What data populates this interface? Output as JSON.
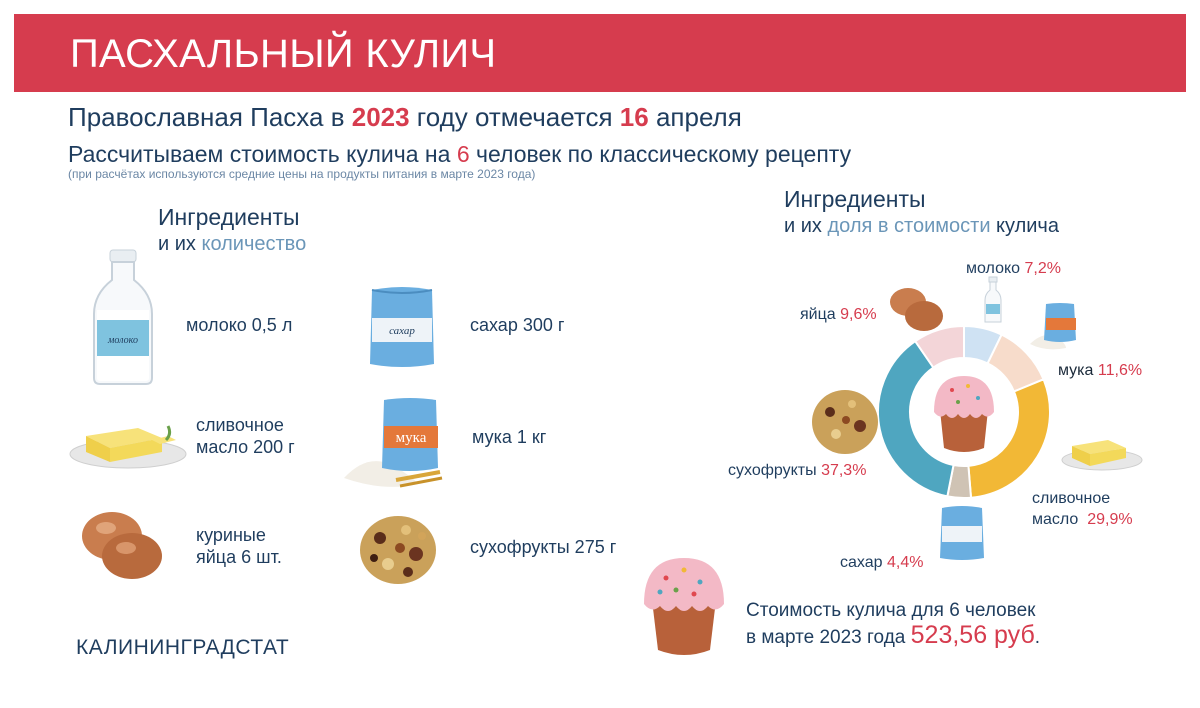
{
  "header": {
    "title": "ПАСХАЛЬНЫЙ КУЛИЧ"
  },
  "subtitle": {
    "line1_a": "Православная Пасха в ",
    "line1_year": "2023",
    "line1_b": " году отмечается ",
    "line1_day": "16",
    "line1_c": " апреля",
    "line2_a": "Рассчитываем стоимость кулича на ",
    "line2_num": "6",
    "line2_b": " человек по классическому рецепту",
    "note": "(при расчётах используются средние цены на продукты питания в марте 2023 года)"
  },
  "ingredients_quantity": {
    "heading": "Ингредиенты",
    "sub_a": "и их ",
    "sub_b": "количество",
    "items": [
      {
        "icon": "milk-bottle-icon",
        "label": "молоко 0,5 л",
        "bottle_label": "молоко"
      },
      {
        "icon": "butter-icon",
        "label1": "сливочное",
        "label2": "масло 200 г"
      },
      {
        "icon": "eggs-icon",
        "label1": "куриные",
        "label2": "яйца  6 шт."
      },
      {
        "icon": "sugar-bag-icon",
        "label": "сахар 300 г",
        "bag_label": "сахар"
      },
      {
        "icon": "flour-bag-icon",
        "label": "мука 1 кг",
        "bag_label": "мука"
      },
      {
        "icon": "dried-fruits-icon",
        "label": "сухофрукты 275 г"
      }
    ]
  },
  "ingredients_share": {
    "heading": "Ингредиенты",
    "sub_a": "и их ",
    "sub_b": "доля в стоимости",
    "sub_c": " кулича"
  },
  "chart_data": {
    "type": "pie",
    "style": "donut",
    "series": [
      {
        "label": "молоко",
        "value": 7.2,
        "pct_text": "7,2%",
        "color": "#cfe2f3"
      },
      {
        "label": "мука",
        "value": 11.6,
        "pct_text": "11,6%",
        "color": "#f7dccb"
      },
      {
        "label": "сливочное масло",
        "label1": "сливочное",
        "label2": "масло",
        "value": 29.9,
        "pct_text": "29,9%",
        "color": "#f2b836"
      },
      {
        "label": "сахар",
        "value": 4.4,
        "pct_text": "4,4%",
        "color": "#cfc3b4"
      },
      {
        "label": "сухофрукты",
        "value": 37.3,
        "pct_text": "37,3%",
        "color": "#4fa6c0"
      },
      {
        "label": "яйца",
        "value": 9.6,
        "pct_text": "9,6%",
        "color": "#f3d5d8"
      }
    ]
  },
  "footer": {
    "org": "КАЛИНИНГРАДСТАТ",
    "cost_line1": "Стоимость кулича для 6 человек",
    "cost_line2": "в марте 2023 года ",
    "cost_value": "523,56 руб",
    "cost_dot": "."
  }
}
